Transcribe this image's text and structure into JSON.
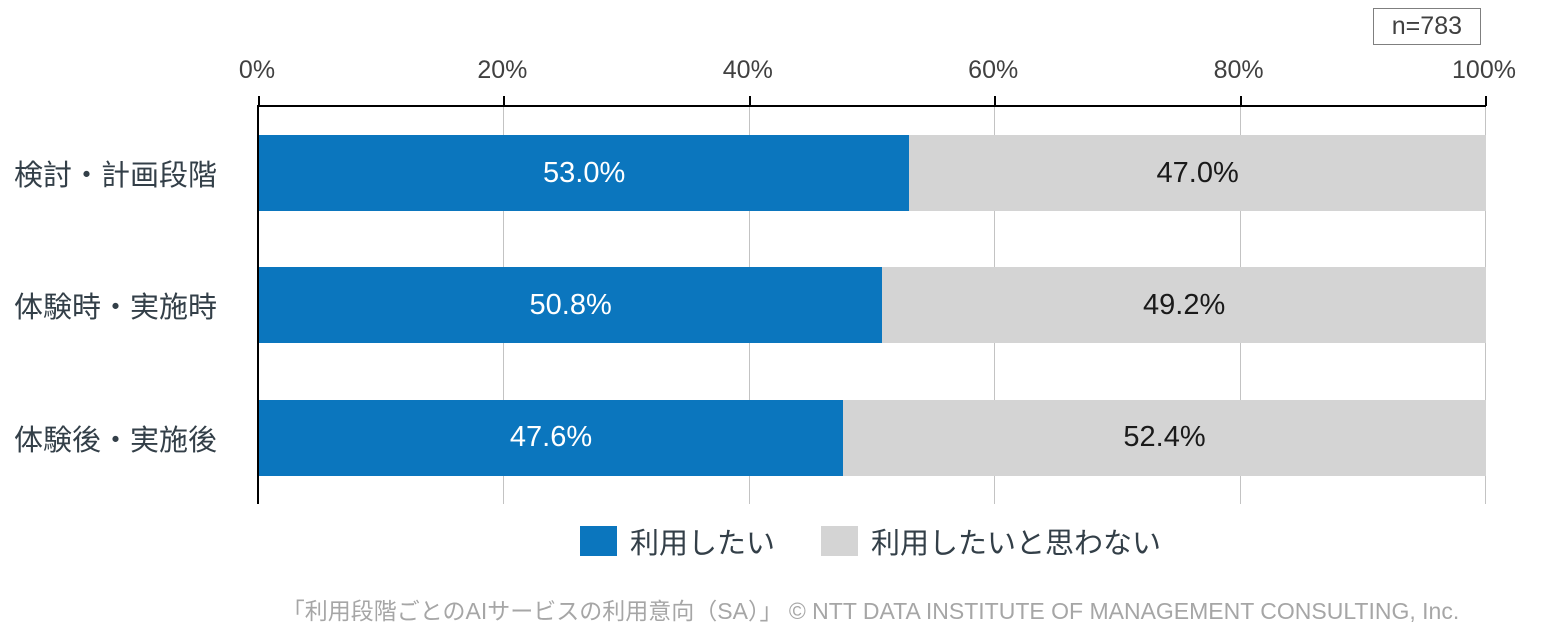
{
  "header": {
    "sample_label": "n=783"
  },
  "chart_data": {
    "type": "bar",
    "orientation": "horizontal",
    "stacked": true,
    "title": "",
    "categories": [
      "検討・計画段階",
      "体験時・実施時",
      "体験後・実施後"
    ],
    "series": [
      {
        "name": "利用したい",
        "color": "#0b76be",
        "label_text_color": "#ffffff",
        "values": [
          53.0,
          50.8,
          47.6
        ]
      },
      {
        "name": "利用したいと思わない",
        "color": "#d4d4d4",
        "label_text_color": "#1a1a1a",
        "values": [
          47.0,
          49.2,
          52.4
        ]
      }
    ],
    "value_labels": [
      [
        "53.0%",
        "47.0%"
      ],
      [
        "50.8%",
        "49.2%"
      ],
      [
        "47.6%",
        "52.4%"
      ]
    ],
    "x_ticks": [
      "0%",
      "20%",
      "40%",
      "60%",
      "80%",
      "100%"
    ],
    "xlim": [
      0,
      100
    ],
    "grid": true,
    "grid_color": "#c3c3c3",
    "axis_color": "#000000",
    "legend_position": "bottom"
  },
  "caption": "「利用段階ごとのAIサービスの利用意向（SA）」 © NTT DATA INSTITUTE OF MANAGEMENT CONSULTING, Inc."
}
